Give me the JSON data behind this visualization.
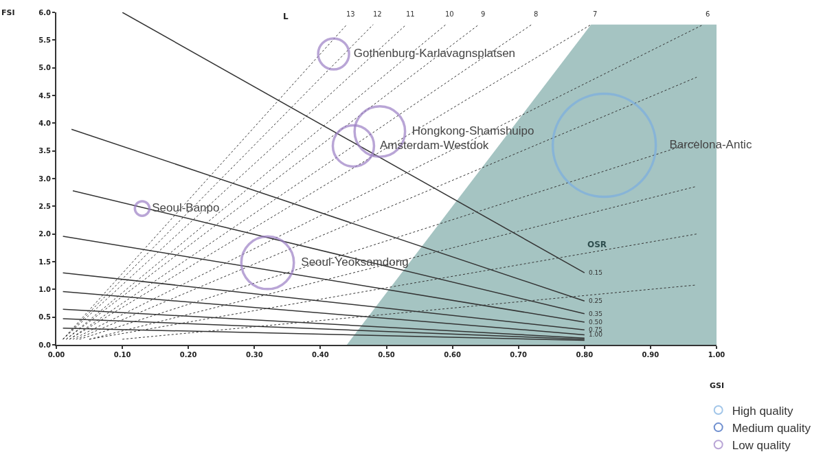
{
  "chart_data": {
    "type": "bubble",
    "xlabel": "GSI",
    "ylabel": "FSI",
    "xlim": [
      0,
      1
    ],
    "xticks": [
      {
        "value": 0,
        "label": "0.00"
      },
      {
        "value": 0.1,
        "label": "0.10"
      },
      {
        "value": 0.2,
        "label": "0.20"
      },
      {
        "value": 0.3,
        "label": "0.30"
      },
      {
        "value": 0.4,
        "label": "0.40"
      },
      {
        "value": 0.5,
        "label": "0.50"
      },
      {
        "value": 0.6,
        "label": "0.60"
      },
      {
        "value": 0.7,
        "label": "0.70"
      },
      {
        "value": 0.8,
        "label": "0.80"
      },
      {
        "value": 0.9,
        "label": "0.90"
      },
      {
        "value": 1,
        "label": "1.00"
      }
    ],
    "ylim": [
      0,
      6
    ],
    "yticks": [
      {
        "value": 0,
        "label": "0.0"
      },
      {
        "value": 0.5,
        "label": "0.5"
      },
      {
        "value": 1,
        "label": "1.0"
      },
      {
        "value": 1.5,
        "label": "1.5"
      },
      {
        "value": 2,
        "label": "2.0"
      },
      {
        "value": 2.5,
        "label": "2.5"
      },
      {
        "value": 3,
        "label": "3.0"
      },
      {
        "value": 3.5,
        "label": "3.5"
      },
      {
        "value": 4,
        "label": "4.0"
      },
      {
        "value": 4.5,
        "label": "4.5"
      },
      {
        "value": 5,
        "label": "5.0"
      },
      {
        "value": 5.5,
        "label": "5.5"
      },
      {
        "value": 6,
        "label": "6.0"
      }
    ],
    "grid": false,
    "legend": "bottom right",
    "series": [
      {
        "type": "area",
        "color": "#a5c4c2",
        "x": [
          0.44,
          0.81,
          1.0
        ],
        "values": [
          0,
          5.78,
          5.78
        ]
      },
      {
        "type": "line",
        "name": "13",
        "color": "#333333",
        "line_style": "dotted",
        "x": [
          0.01,
          0.44
        ],
        "values": [
          0.1,
          5.78
        ]
      },
      {
        "type": "line",
        "name": "12",
        "color": "#333333",
        "line_style": "dotted",
        "x": [
          0.01,
          0.48
        ],
        "values": [
          0.1,
          5.78
        ]
      },
      {
        "type": "line",
        "name": "11",
        "color": "#333333",
        "line_style": "dotted",
        "x": [
          0.01,
          0.53
        ],
        "values": [
          0.1,
          5.78
        ]
      },
      {
        "type": "line",
        "name": "10",
        "color": "#333333",
        "line_style": "dotted",
        "x": [
          0.015,
          0.59
        ],
        "values": [
          0.1,
          5.78
        ]
      },
      {
        "type": "line",
        "name": "9",
        "color": "#333333",
        "line_style": "dotted",
        "x": [
          0.015,
          0.64
        ],
        "values": [
          0.1,
          5.78
        ]
      },
      {
        "type": "line",
        "name": "8",
        "color": "#333333",
        "line_style": "dotted",
        "x": [
          0.02,
          0.72
        ],
        "values": [
          0.1,
          5.78
        ]
      },
      {
        "type": "line",
        "name": "7",
        "color": "#333333",
        "line_style": "dotted",
        "x": [
          0.02,
          0.81
        ],
        "values": [
          0.1,
          5.78
        ]
      },
      {
        "type": "line",
        "name": "6",
        "color": "#333333",
        "line_style": "dotted",
        "x": [
          0.025,
          0.98
        ],
        "values": [
          0.1,
          5.78
        ]
      },
      {
        "type": "line",
        "color": "#333333",
        "line_style": "dotted",
        "x": [
          0.03,
          0.97
        ],
        "values": [
          0.1,
          4.83
        ]
      },
      {
        "type": "line",
        "color": "#333333",
        "line_style": "dotted",
        "x": [
          0.035,
          0.97
        ],
        "values": [
          0.1,
          3.67
        ]
      },
      {
        "type": "line",
        "color": "#333333",
        "line_style": "dotted",
        "x": [
          0.05,
          0.97
        ],
        "values": [
          0.1,
          2.86
        ]
      },
      {
        "type": "line",
        "color": "#333333",
        "line_style": "dotted",
        "x": [
          0.05,
          0.97
        ],
        "values": [
          0.1,
          2.0
        ]
      },
      {
        "type": "line",
        "color": "#333333",
        "line_style": "dotted",
        "x": [
          0.1,
          0.97
        ],
        "values": [
          0.1,
          1.08
        ]
      },
      {
        "type": "line",
        "name": "0.15",
        "color": "#333333",
        "line_style": "solid",
        "x": [
          0.1,
          0.8
        ],
        "values": [
          6.0,
          1.3
        ]
      },
      {
        "type": "line",
        "name": "0.25",
        "color": "#333333",
        "line_style": "solid",
        "x": [
          0.023,
          0.8
        ],
        "values": [
          3.89,
          0.79
        ]
      },
      {
        "type": "line",
        "name": "0.35",
        "color": "#333333",
        "line_style": "solid",
        "x": [
          0.025,
          0.8
        ],
        "values": [
          2.78,
          0.56
        ]
      },
      {
        "type": "line",
        "name": "0.50",
        "color": "#333333",
        "line_style": "solid",
        "x": [
          0.01,
          0.8
        ],
        "values": [
          1.96,
          0.41
        ]
      },
      {
        "type": "line",
        "name": "0.75",
        "color": "#333333",
        "line_style": "solid",
        "x": [
          0.01,
          0.8
        ],
        "values": [
          1.3,
          0.27
        ]
      },
      {
        "type": "line",
        "name": "1.00",
        "color": "#333333",
        "line_style": "solid",
        "x": [
          0.01,
          0.8
        ],
        "values": [
          0.96,
          0.18
        ]
      },
      {
        "type": "line",
        "color": "#333333",
        "line_style": "solid",
        "x": [
          0.01,
          0.8
        ],
        "values": [
          0.64,
          0.12
        ]
      },
      {
        "type": "line",
        "color": "#333333",
        "line_style": "solid",
        "x": [
          0.01,
          0.8
        ],
        "values": [
          0.47,
          0.1
        ]
      },
      {
        "type": "line",
        "color": "#333333",
        "line_style": "solid",
        "x": [
          0.01,
          0.8
        ],
        "values": [
          0.3,
          0.08
        ]
      },
      {
        "name": "High quality",
        "color": "#7aaee0",
        "marker": "circle",
        "x": [
          0.83
        ],
        "values": [
          3.6
        ],
        "sizes": [
          1
        ],
        "value_labels": [
          "Barcelona-Antic"
        ]
      },
      {
        "name": "Medium quality",
        "color": "#6f8fcf",
        "marker": "circle"
      },
      {
        "name": "Low quality",
        "color": "#9b7fc4",
        "marker": "circle",
        "x": [
          0.42,
          0.49,
          0.45,
          0.13,
          0.32
        ],
        "values": [
          5.25,
          3.85,
          3.59,
          2.46,
          1.48
        ],
        "sizes": [
          0.09,
          0.24,
          0.16,
          0.02,
          0.26
        ],
        "value_labels": [
          "Gothenburg-Karlavagnsplatsen",
          "Hongkong-Shamshuipo",
          "Amsterdam-Westdok",
          "Seoul-Banpo",
          "Seoul-Yeoksamdong"
        ]
      }
    ],
    "annotations": [
      "L",
      "OSR"
    ]
  }
}
